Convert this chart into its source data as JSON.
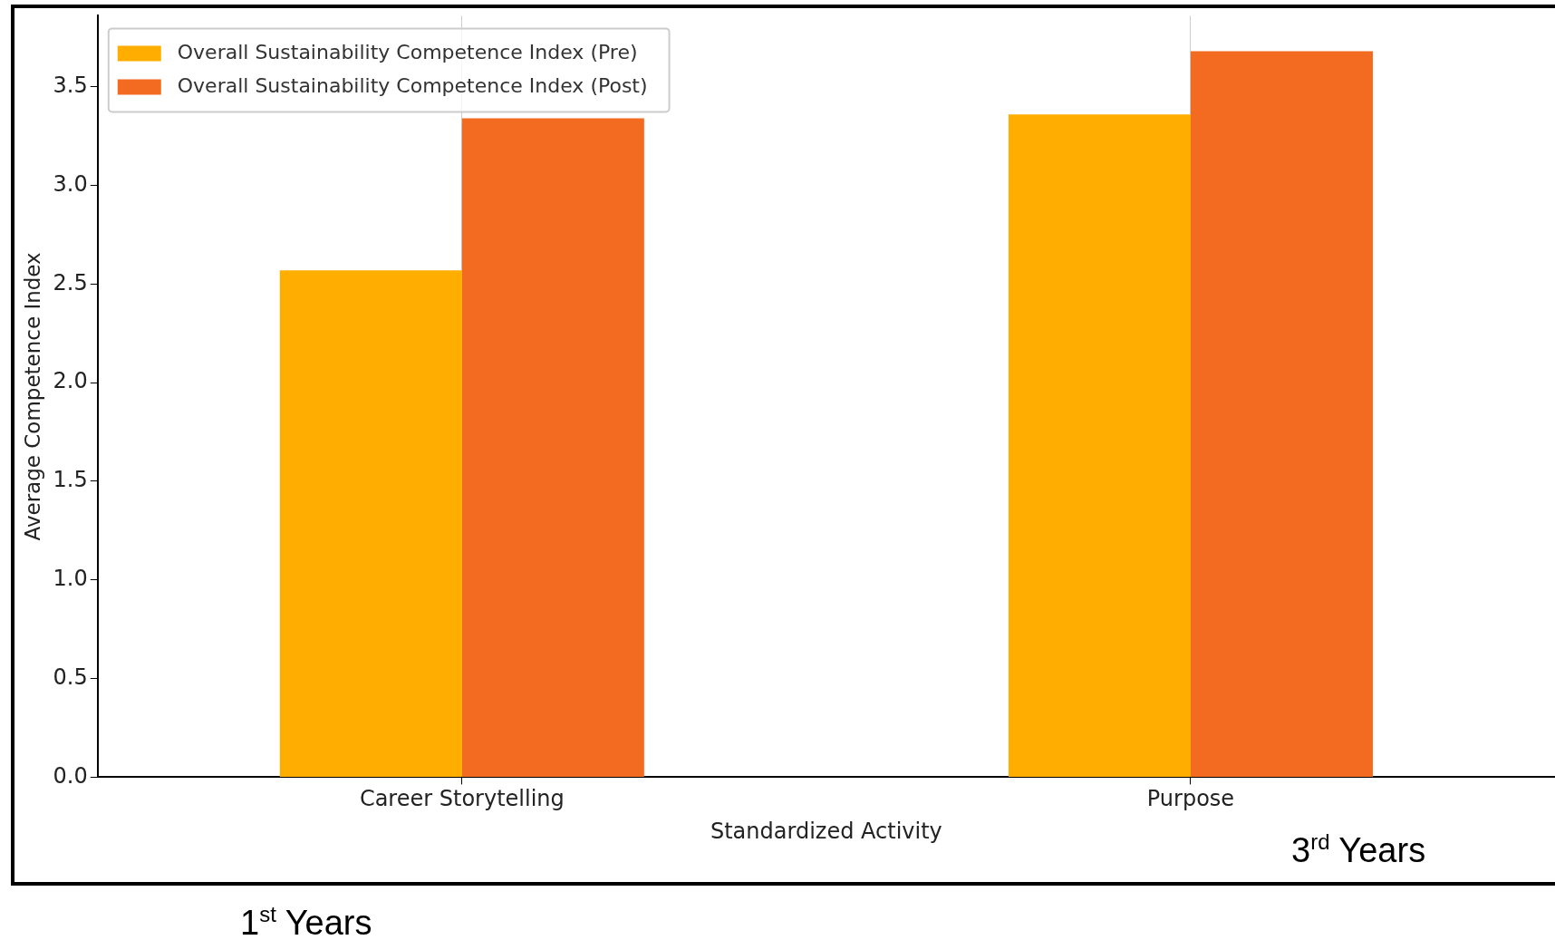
{
  "chart_data": {
    "type": "bar",
    "xlabel": "Standardized Activity",
    "ylabel": "Average Competence Index",
    "categories": [
      "Career Storytelling",
      "Purpose"
    ],
    "series": [
      {
        "name": "Overall Sustainability Competence Index (Pre)",
        "color": "#ffae00",
        "values": [
          2.57,
          3.36
        ]
      },
      {
        "name": "Overall Sustainability Competence Index (Post)",
        "color": "#f26b21",
        "values": [
          3.34,
          3.68
        ]
      }
    ],
    "ylim": [
      0,
      3.86
    ],
    "yticks": [
      {
        "value": 0,
        "label": "0.0"
      },
      0.5,
      {
        "value": 1,
        "label": "1.0"
      },
      1.5,
      {
        "value": 2,
        "label": "2.0"
      },
      2.5,
      {
        "value": 3,
        "label": "3.0"
      },
      3.5
    ],
    "grid": "x",
    "legend": "top left",
    "annotations": [
      "3$^{rd}$ Years",
      "1$^{st}$ Years"
    ]
  }
}
